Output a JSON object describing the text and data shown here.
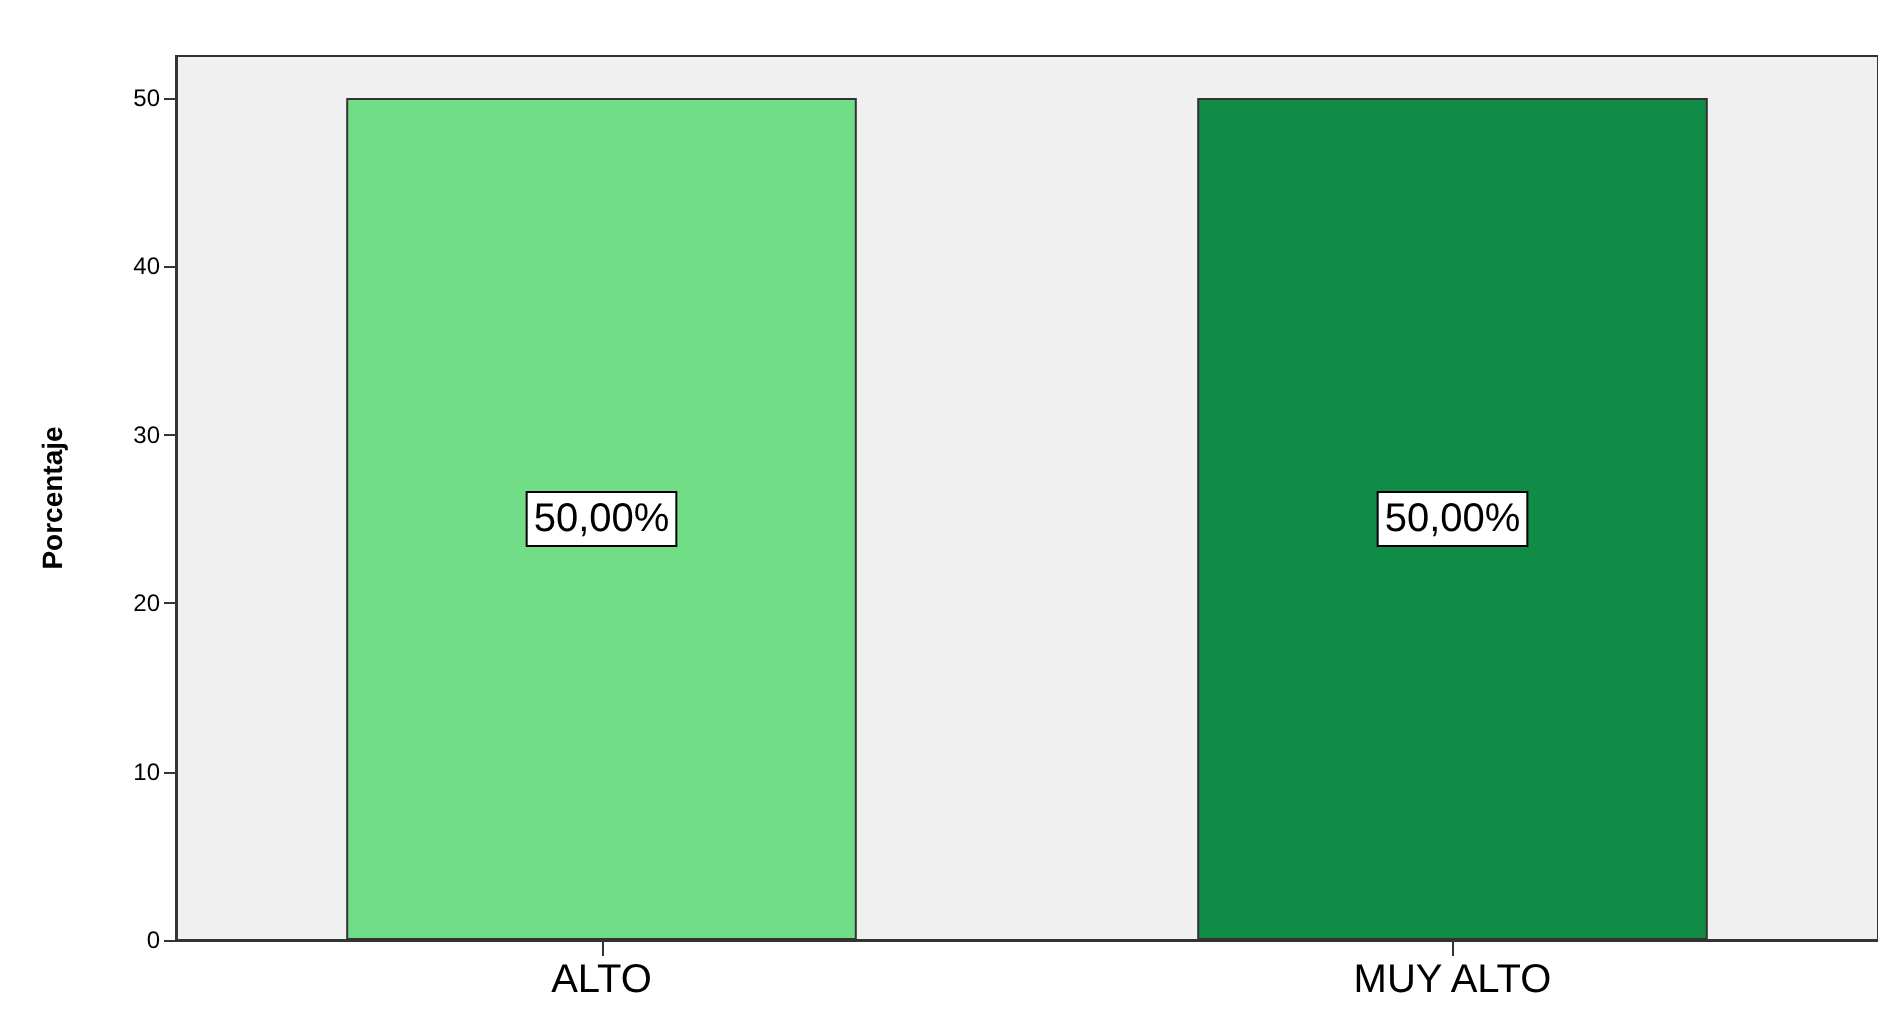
{
  "chart_data": {
    "type": "bar",
    "ylabel": "Porcentaje",
    "categories": [
      "ALTO",
      "MUY ALTO"
    ],
    "values": [
      50,
      50
    ],
    "colors": [
      "#72dd87",
      "#118c47"
    ],
    "value_labels": [
      "50,00%",
      "50,00%"
    ],
    "ylim": [
      0,
      52.5
    ],
    "yticks": [
      0,
      10,
      20,
      30,
      40,
      50
    ],
    "grid": false
  }
}
